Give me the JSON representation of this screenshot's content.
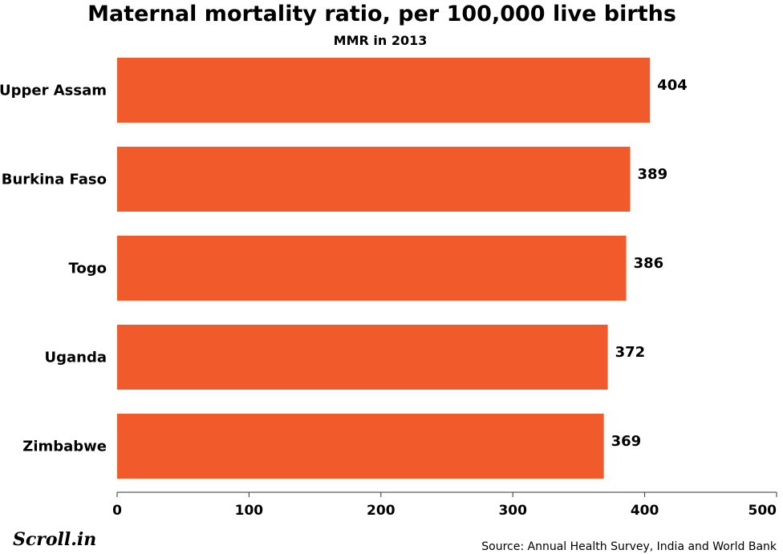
{
  "chart_data": {
    "type": "bar",
    "orientation": "horizontal",
    "title": "Maternal mortality ratio, per 100,000 live births",
    "subtitle": "MMR in 2013",
    "categories": [
      "Upper Assam",
      "Burkina Faso",
      "Togo",
      "Uganda",
      "Zimbabwe"
    ],
    "values": [
      404,
      389,
      386,
      372,
      369
    ],
    "xlim": [
      0,
      500
    ],
    "x_ticks": [
      0,
      100,
      200,
      300,
      400,
      500
    ],
    "grid": false,
    "bar_color": "#f15a2b",
    "xlabel": "",
    "ylabel": ""
  },
  "source": "Source: Annual Health Survey, India and World Bank",
  "logo": "Scroll.in"
}
